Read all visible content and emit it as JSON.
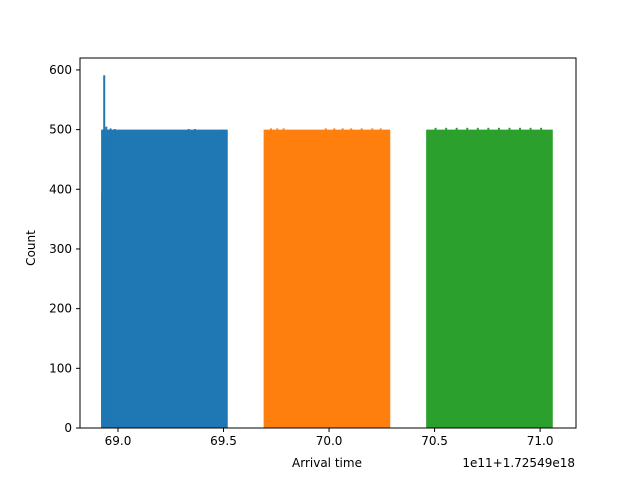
{
  "chart_data": {
    "type": "bar",
    "title": "",
    "xlabel": "Arrival time",
    "ylabel": "Count",
    "x_offset_label": "1e11+1.72549e18",
    "xlim": [
      68.82,
      71.17
    ],
    "ylim": [
      0,
      620
    ],
    "xticks": [
      69.0,
      69.5,
      70.0,
      70.5,
      71.0
    ],
    "xtick_labels": [
      "69.0",
      "69.5",
      "70.0",
      "70.5",
      "71.0"
    ],
    "yticks": [
      0,
      100,
      200,
      300,
      400,
      500,
      600
    ],
    "ytick_labels": [
      "0",
      "100",
      "200",
      "300",
      "400",
      "500",
      "600"
    ],
    "grid": false,
    "series": [
      {
        "color": "#1f77b4",
        "range": [
          68.92,
          69.52
        ],
        "base": 500,
        "features": [
          {
            "x": 68.92,
            "value": 393
          },
          {
            "x": 68.93,
            "value": 591
          },
          {
            "x": 68.94,
            "value": 505
          },
          {
            "x": 68.95,
            "value": 497
          },
          {
            "x": 68.96,
            "value": 502
          },
          {
            "x": 68.97,
            "value": 497
          },
          {
            "x": 68.98,
            "value": 501
          },
          {
            "x": 69.33,
            "value": 501
          },
          {
            "x": 69.36,
            "value": 501
          },
          {
            "x": 69.49,
            "value": 500
          }
        ]
      },
      {
        "color": "#ff7f0e",
        "range": [
          69.69,
          70.29
        ],
        "base": 500,
        "features": [
          {
            "x": 69.72,
            "value": 502
          },
          {
            "x": 69.75,
            "value": 502
          },
          {
            "x": 69.78,
            "value": 502
          },
          {
            "x": 69.98,
            "value": 502
          },
          {
            "x": 70.02,
            "value": 502
          },
          {
            "x": 70.06,
            "value": 502
          },
          {
            "x": 70.1,
            "value": 502
          },
          {
            "x": 70.15,
            "value": 502
          },
          {
            "x": 70.2,
            "value": 502
          },
          {
            "x": 70.24,
            "value": 502
          }
        ]
      },
      {
        "color": "#2ca02c",
        "range": [
          70.46,
          71.06
        ],
        "base": 500,
        "features": [
          {
            "x": 70.5,
            "value": 503
          },
          {
            "x": 70.55,
            "value": 503
          },
          {
            "x": 70.6,
            "value": 503
          },
          {
            "x": 70.65,
            "value": 503
          },
          {
            "x": 70.7,
            "value": 503
          },
          {
            "x": 70.75,
            "value": 503
          },
          {
            "x": 70.8,
            "value": 503
          },
          {
            "x": 70.85,
            "value": 503
          },
          {
            "x": 70.9,
            "value": 503
          },
          {
            "x": 70.95,
            "value": 503
          },
          {
            "x": 71.0,
            "value": 503
          }
        ]
      }
    ]
  }
}
